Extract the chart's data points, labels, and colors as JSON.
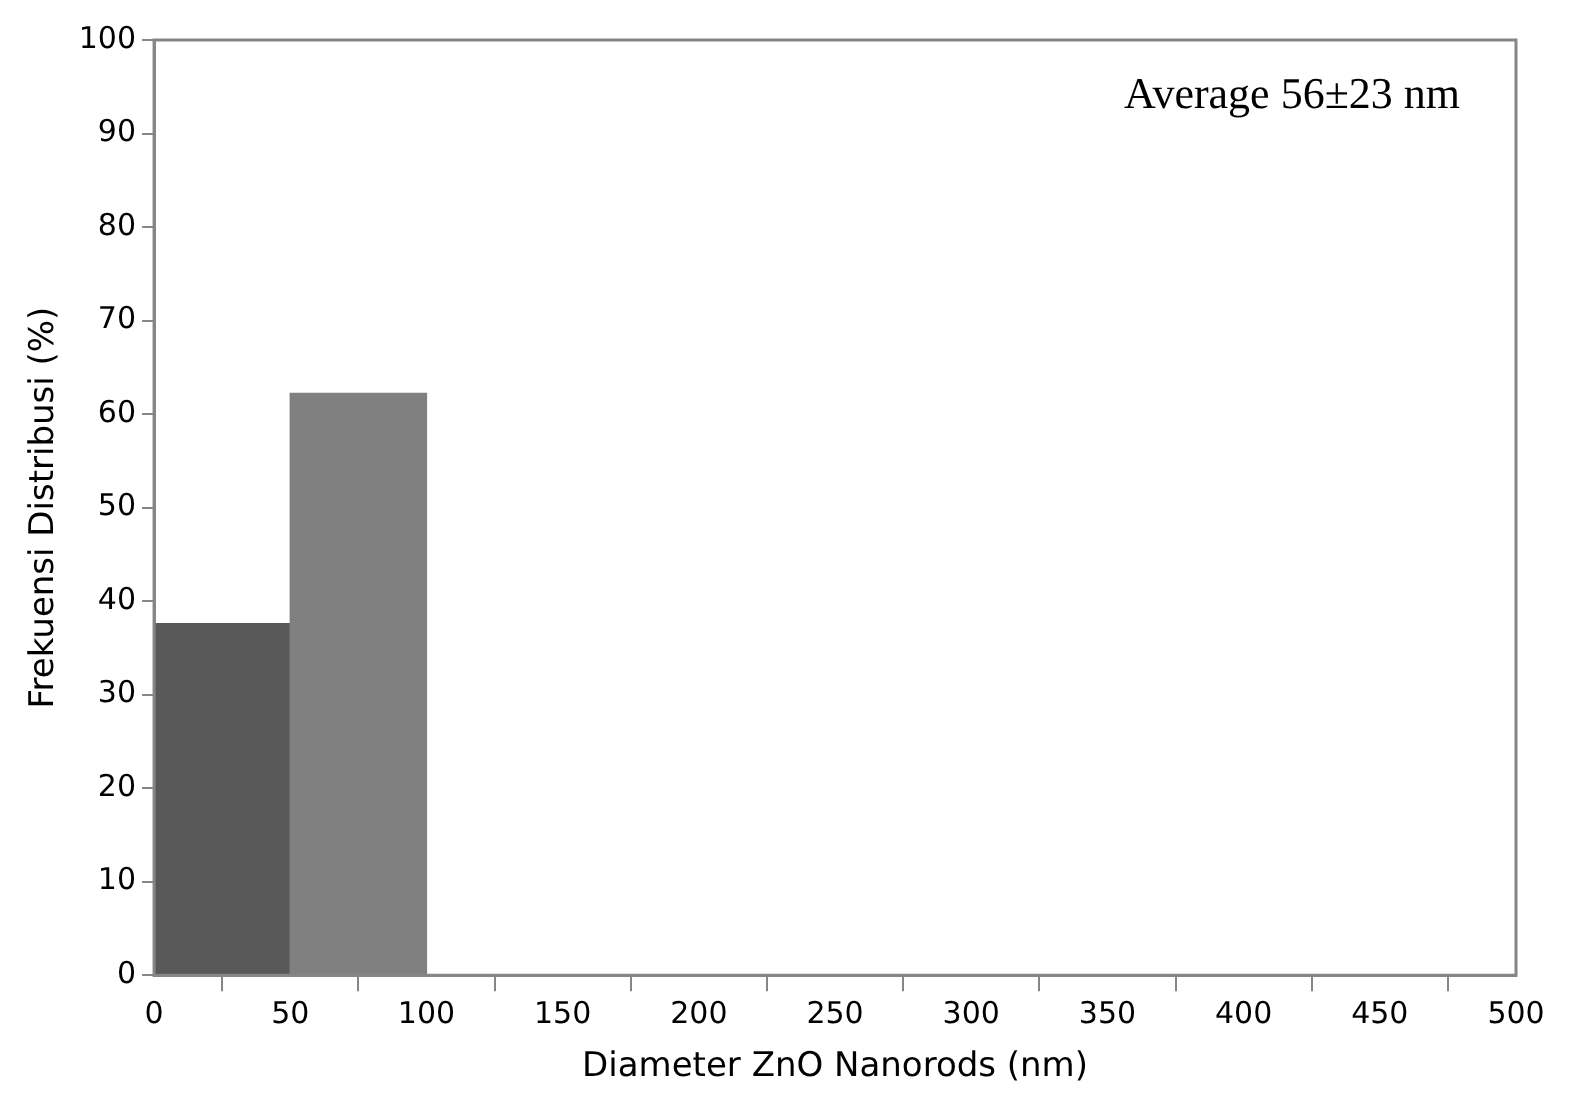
{
  "chart_data": {
    "type": "histogram",
    "xlabel": "Diameter ZnO Nanorods (nm)",
    "ylabel": "Frekuensi Distribusi (%)",
    "bins": [
      0,
      50,
      100,
      150,
      200,
      250,
      300,
      350,
      400,
      450,
      500
    ],
    "values": [
      37.6,
      62.2,
      0,
      0,
      0,
      0,
      0,
      0,
      0,
      0
    ],
    "colors": [
      "#595959",
      "#808080",
      "#808080",
      "#808080",
      "#808080",
      "#808080",
      "#808080",
      "#808080",
      "#808080",
      "#808080"
    ],
    "xlim": [
      0,
      500
    ],
    "xticks": [
      0,
      50,
      100,
      150,
      200,
      250,
      300,
      350,
      400,
      450,
      500
    ],
    "ylim": [
      0,
      100
    ],
    "yticks": [
      0,
      10,
      20,
      30,
      40,
      50,
      60,
      70,
      80,
      90,
      100
    ],
    "grid": false,
    "legend": false,
    "annotations": [
      "Average 56±23 nm"
    ]
  }
}
